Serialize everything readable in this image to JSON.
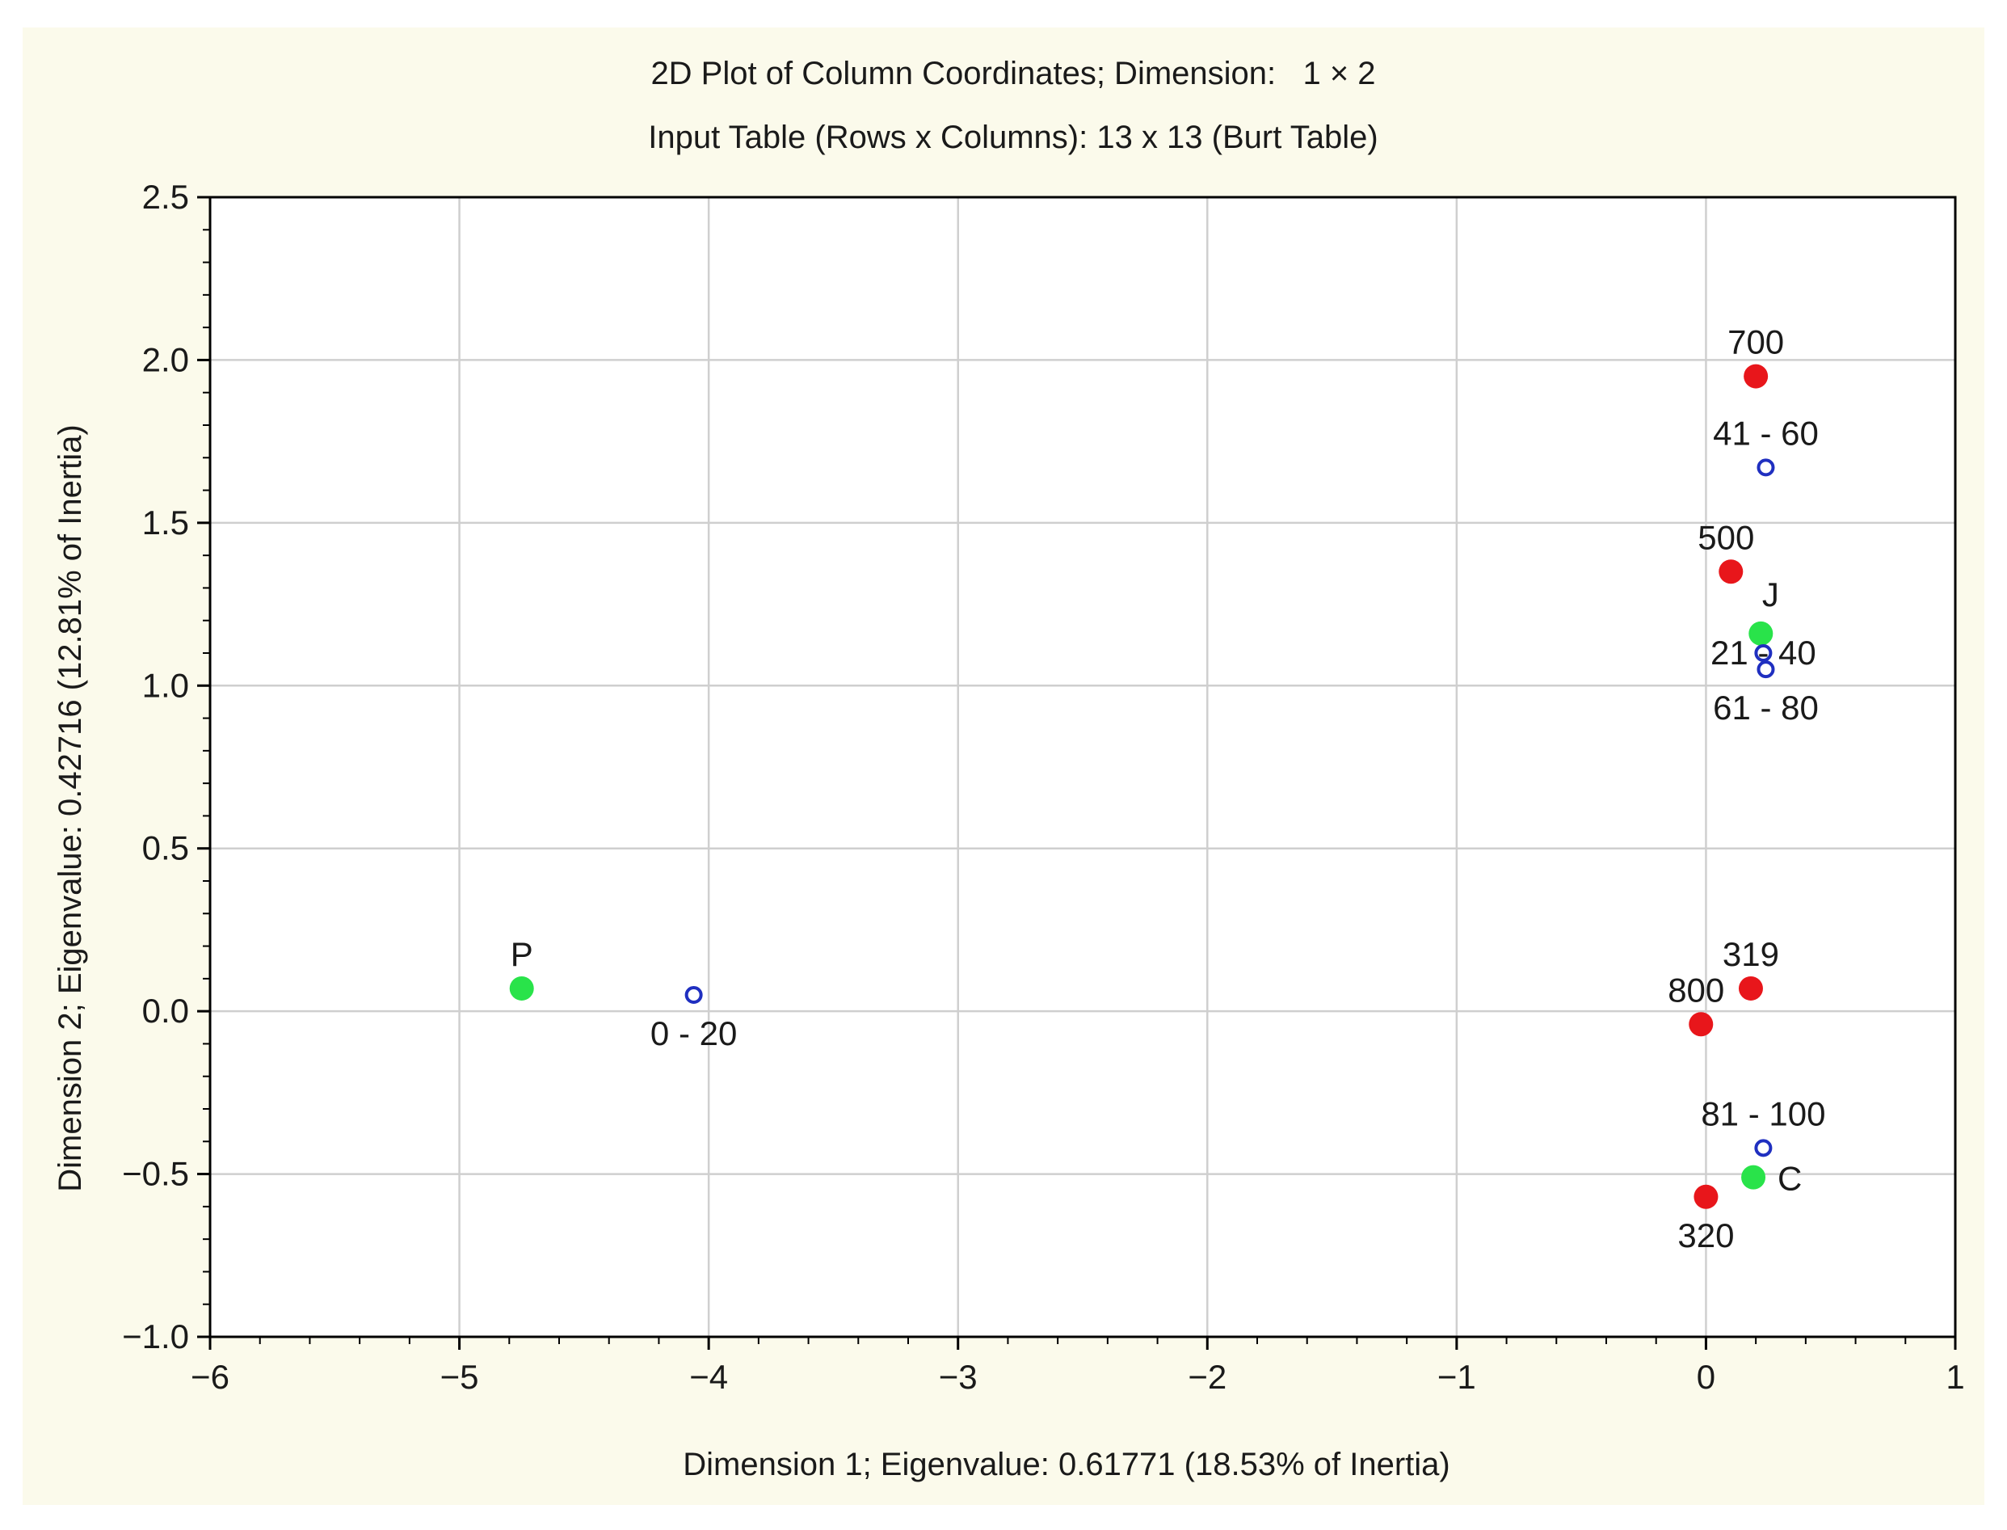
{
  "chart_data": {
    "type": "scatter",
    "title": "2D Plot of Column Coordinates; Dimension:   1 × 2",
    "subtitle": "Input Table (Rows x Columns): 13 x 13 (Burt Table)",
    "xlabel": "Dimension 1; Eigenvalue: 0.61771 (18.53% of Inertia)",
    "ylabel": "Dimension 2; Eigenvalue: 0.42716 (12.81% of Inertia)",
    "xlim": [
      -6,
      1
    ],
    "ylim": [
      -1.0,
      2.5
    ],
    "grid": true,
    "x_ticks": [
      {
        "value": -6,
        "label": "−6"
      },
      {
        "value": -5,
        "label": "−5"
      },
      {
        "value": -4,
        "label": "−4"
      },
      {
        "value": -3,
        "label": "−3"
      },
      {
        "value": -2,
        "label": "−2"
      },
      {
        "value": -1,
        "label": "−1"
      },
      {
        "value": 0,
        "label": "0"
      },
      {
        "value": 1,
        "label": "1"
      }
    ],
    "y_ticks": [
      {
        "value": 2.5,
        "label": "2.5"
      },
      {
        "value": 2.0,
        "label": "2.0"
      },
      {
        "value": 1.5,
        "label": "1.5"
      },
      {
        "value": 1.0,
        "label": "1.0"
      },
      {
        "value": 0.5,
        "label": "0.5"
      },
      {
        "value": 0.0,
        "label": "0.0"
      },
      {
        "value": -0.5,
        "label": "−0.5"
      },
      {
        "value": -1.0,
        "label": "−1.0"
      }
    ],
    "series": [
      {
        "name": "red-group",
        "marker": "filled-circle",
        "color": "#e8161b",
        "points": [
          {
            "label": "700",
            "x": 0.2,
            "y": 1.95,
            "label_pos": "above"
          },
          {
            "label": "500",
            "x": 0.1,
            "y": 1.35,
            "label_pos": "above-left"
          },
          {
            "label": "319",
            "x": 0.18,
            "y": 0.07,
            "label_pos": "above"
          },
          {
            "label": "800",
            "x": -0.02,
            "y": -0.04,
            "label_pos": "above-left"
          },
          {
            "label": "320",
            "x": 0.0,
            "y": -0.57,
            "label_pos": "below"
          }
        ]
      },
      {
        "name": "green-group",
        "marker": "filled-circle",
        "color": "#29e34a",
        "points": [
          {
            "label": "J",
            "x": 0.22,
            "y": 1.16,
            "label_pos": "above-right"
          },
          {
            "label": "P",
            "x": -4.75,
            "y": 0.07,
            "label_pos": "above"
          },
          {
            "label": "C",
            "x": 0.19,
            "y": -0.51,
            "label_pos": "right"
          }
        ]
      },
      {
        "name": "blue-group",
        "marker": "open-circle",
        "color": "#1f2fc0",
        "points": [
          {
            "label": "41 - 60",
            "x": 0.24,
            "y": 1.67,
            "label_pos": "above"
          },
          {
            "label": "21 - 40",
            "x": 0.23,
            "y": 1.1,
            "label_pos": "center"
          },
          {
            "label": "61 - 80",
            "x": 0.24,
            "y": 1.05,
            "label_pos": "below"
          },
          {
            "label": "0 - 20",
            "x": -4.06,
            "y": 0.05,
            "label_pos": "below"
          },
          {
            "label": "81 - 100",
            "x": 0.23,
            "y": -0.42,
            "label_pos": "above"
          }
        ]
      }
    ]
  }
}
